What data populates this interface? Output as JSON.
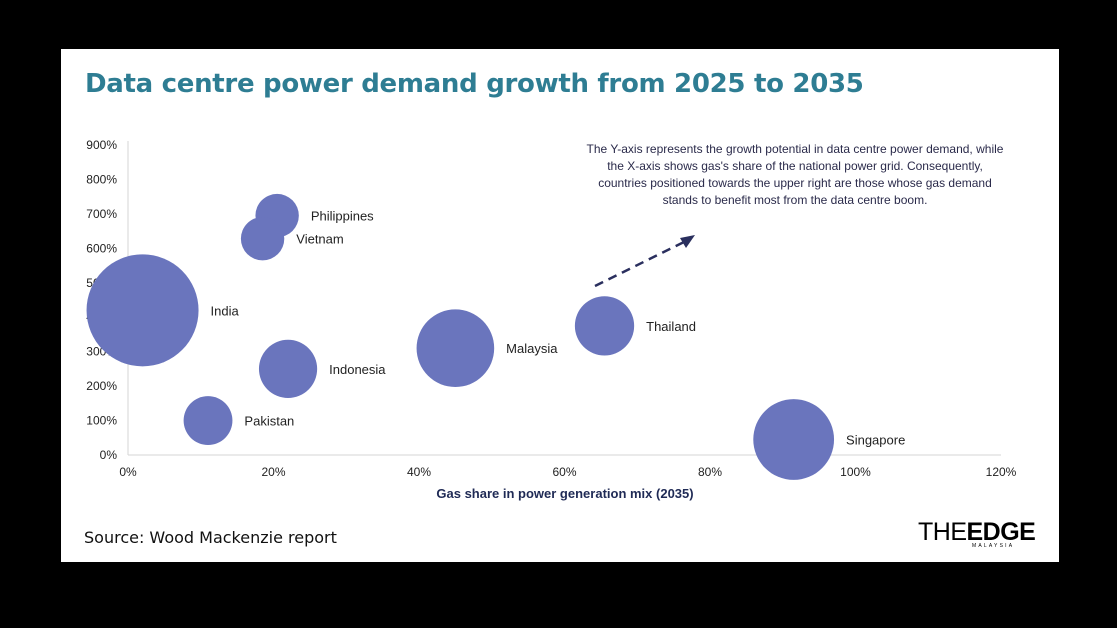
{
  "title": "Data centre power demand growth from 2025 to 2035",
  "source": "Source: Wood Mackenzie report",
  "logo": {
    "main_prefix": "THE",
    "main_suffix": "EDGE",
    "sub": "MALAYSIA"
  },
  "colors": {
    "title": "#2e7d93",
    "bubble": "#6a75bd",
    "arrow": "#2a2f5e"
  },
  "annotation": {
    "lines": [
      "The Y-axis represents the growth potential in data centre power demand, while",
      "the X-axis shows gas's share of the national power grid. Consequently,",
      "countries positioned towards the upper right are those whose gas demand",
      "stands to benefit most from the data centre boom."
    ]
  },
  "chart_data": {
    "type": "scatter",
    "title": "Data centre power demand growth from 2025 to 2035",
    "xlabel": "Gas share in power generation mix (2035)",
    "ylabel": "",
    "xlim": [
      0,
      120
    ],
    "ylim": [
      0,
      900
    ],
    "x_ticks": [
      "0%",
      "20%",
      "40%",
      "60%",
      "80%",
      "100%",
      "120%"
    ],
    "y_ticks": [
      "0%",
      "100%",
      "200%",
      "300%",
      "400%",
      "500%",
      "600%",
      "700%",
      "800%",
      "900%"
    ],
    "grid": false,
    "points": [
      {
        "name": "India",
        "x": 2,
        "y": 420,
        "size": 100
      },
      {
        "name": "Philippines",
        "x": 20.5,
        "y": 695,
        "size": 15
      },
      {
        "name": "Vietnam",
        "x": 18.5,
        "y": 628,
        "size": 15
      },
      {
        "name": "Indonesia",
        "x": 22,
        "y": 250,
        "size": 27
      },
      {
        "name": "Pakistan",
        "x": 11,
        "y": 100,
        "size": 19
      },
      {
        "name": "Malaysia",
        "x": 45,
        "y": 310,
        "size": 48
      },
      {
        "name": "Thailand",
        "x": 65.5,
        "y": 375,
        "size": 28
      },
      {
        "name": "Singapore",
        "x": 91.5,
        "y": 45,
        "size": 52
      }
    ]
  }
}
